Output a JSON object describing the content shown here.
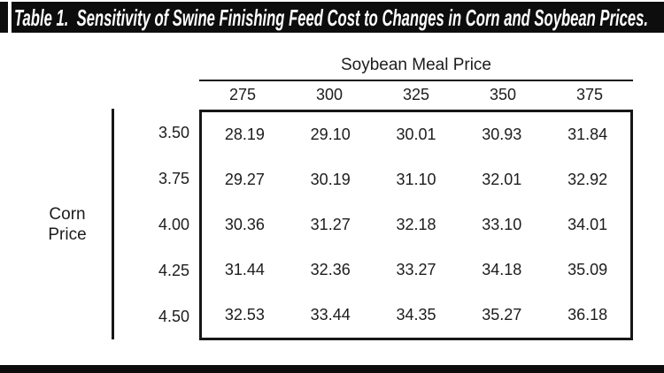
{
  "title": "Table 1.  Sensitivity of Swine Finishing Feed Cost to Changes in Corn and Soybean Prices.",
  "colors": {
    "title_bar_background": "#0d0d0d",
    "title_text": "#ffffff",
    "table_text": "#1c1c1c",
    "rule_lines": "#161616",
    "background": "#ffffff"
  },
  "chart_data": {
    "type": "table",
    "title": "Table 1.  Sensitivity of Swine Finishing Feed Cost to Changes in Corn and Soybean Prices.",
    "column_group_label": "Soybean Meal Price",
    "row_group_label_lines": [
      "Corn",
      "Price"
    ],
    "columns": [
      "275",
      "300",
      "325",
      "350",
      "375"
    ],
    "row_headers": [
      "3.50",
      "3.75",
      "4.00",
      "4.25",
      "4.50"
    ],
    "rows": [
      [
        "28.19",
        "29.10",
        "30.01",
        "30.93",
        "31.84"
      ],
      [
        "29.27",
        "30.19",
        "31.10",
        "32.01",
        "32.92"
      ],
      [
        "30.36",
        "31.27",
        "32.18",
        "33.10",
        "34.01"
      ],
      [
        "31.44",
        "32.36",
        "33.27",
        "34.18",
        "35.09"
      ],
      [
        "32.53",
        "33.44",
        "34.35",
        "35.27",
        "36.18"
      ]
    ],
    "layout_hints": {
      "grid": "single outer border around value matrix, no inner gridlines",
      "column_group_rule": "horizontal rule under column group label",
      "row_group_rule": "vertical rule right of row group label"
    }
  }
}
